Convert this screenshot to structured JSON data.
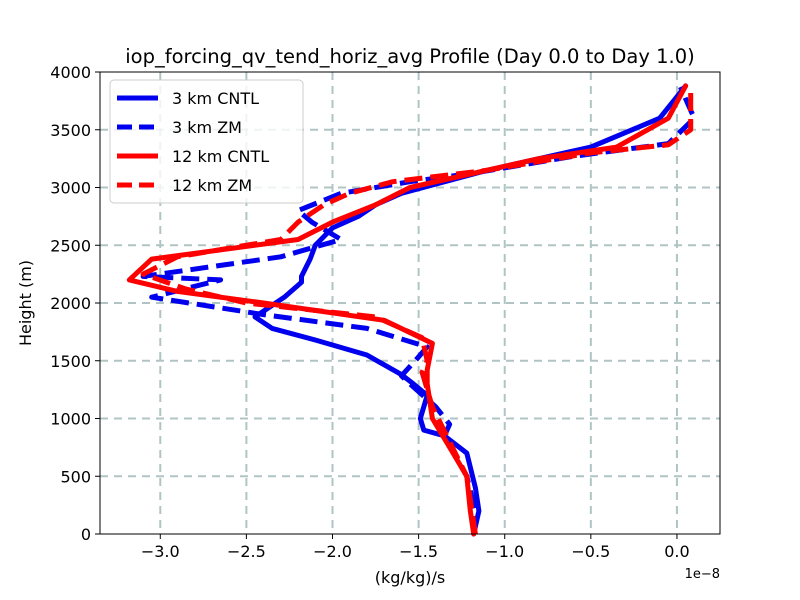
{
  "chart_data": {
    "type": "line",
    "title": "iop_forcing_qv_tend_horiz_avg Profile (Day 0.0 to Day 1.0)",
    "xlabel": "(kg/kg)/s",
    "ylabel": "Height (m)",
    "x_offset_label": "1e−8",
    "xlim": [
      -3.35,
      0.25
    ],
    "ylim": [
      0,
      4000
    ],
    "xticks": [
      -3.0,
      -2.5,
      -2.0,
      -1.5,
      -1.0,
      -0.5,
      0.0
    ],
    "xtick_labels": [
      "−3.0",
      "−2.5",
      "−2.0",
      "−1.5",
      "−1.0",
      "−0.5",
      "0.0"
    ],
    "yticks": [
      0,
      500,
      1000,
      1500,
      2000,
      2500,
      3000,
      3500,
      4000
    ],
    "ytick_labels": [
      "0",
      "500",
      "1000",
      "1500",
      "2000",
      "2500",
      "3000",
      "3500",
      "4000"
    ],
    "grid": true,
    "legend_position": "top-left",
    "series": [
      {
        "name": "3 km CNTL",
        "color": "#0000ee",
        "dashed": false,
        "points": [
          [
            -1.18,
            0
          ],
          [
            -1.15,
            200
          ],
          [
            -1.17,
            400
          ],
          [
            -1.22,
            700
          ],
          [
            -1.35,
            850
          ],
          [
            -1.47,
            900
          ],
          [
            -1.49,
            1000
          ],
          [
            -1.45,
            1200
          ],
          [
            -1.53,
            1300
          ],
          [
            -1.6,
            1380
          ],
          [
            -1.8,
            1550
          ],
          [
            -2.1,
            1680
          ],
          [
            -2.35,
            1780
          ],
          [
            -2.45,
            1880
          ],
          [
            -2.28,
            2050
          ],
          [
            -2.18,
            2180
          ],
          [
            -2.18,
            2230
          ],
          [
            -2.13,
            2380
          ],
          [
            -2.1,
            2500
          ],
          [
            -2.0,
            2650
          ],
          [
            -1.85,
            2750
          ],
          [
            -1.75,
            2850
          ],
          [
            -1.6,
            2950
          ],
          [
            -1.1,
            3150
          ],
          [
            -0.5,
            3350
          ],
          [
            -0.1,
            3600
          ],
          [
            0.05,
            3880
          ]
        ]
      },
      {
        "name": "3 km ZM",
        "color": "#0000ee",
        "dashed": true,
        "points": [
          [
            -1.18,
            0
          ],
          [
            -1.17,
            200
          ],
          [
            -1.22,
            500
          ],
          [
            -1.35,
            850
          ],
          [
            -1.32,
            950
          ],
          [
            -1.4,
            1100
          ],
          [
            -1.55,
            1300
          ],
          [
            -1.6,
            1370
          ],
          [
            -1.52,
            1500
          ],
          [
            -1.45,
            1620
          ],
          [
            -1.8,
            1780
          ],
          [
            -2.4,
            1900
          ],
          [
            -3.05,
            2050
          ],
          [
            -2.65,
            2200
          ],
          [
            -3.1,
            2230
          ],
          [
            -2.3,
            2400
          ],
          [
            -1.95,
            2550
          ],
          [
            -2.12,
            2700
          ],
          [
            -2.2,
            2800
          ],
          [
            -1.95,
            2950
          ],
          [
            -1.55,
            3050
          ],
          [
            -1.2,
            3120
          ],
          [
            -0.6,
            3270
          ],
          [
            -0.05,
            3380
          ],
          [
            0.1,
            3600
          ],
          [
            0.02,
            3870
          ]
        ]
      },
      {
        "name": "12 km CNTL",
        "color": "#ff0000",
        "dashed": false,
        "points": [
          [
            -1.18,
            0
          ],
          [
            -1.2,
            200
          ],
          [
            -1.22,
            500
          ],
          [
            -1.3,
            700
          ],
          [
            -1.42,
            1000
          ],
          [
            -1.45,
            1300
          ],
          [
            -1.45,
            1420
          ],
          [
            -1.42,
            1650
          ],
          [
            -1.7,
            1850
          ],
          [
            -2.4,
            2000
          ],
          [
            -2.9,
            2100
          ],
          [
            -3.18,
            2200
          ],
          [
            -3.05,
            2380
          ],
          [
            -2.2,
            2550
          ],
          [
            -2.0,
            2700
          ],
          [
            -1.75,
            2850
          ],
          [
            -1.55,
            3000
          ],
          [
            -0.8,
            3250
          ],
          [
            -0.35,
            3350
          ],
          [
            -0.05,
            3600
          ],
          [
            0.05,
            3880
          ]
        ]
      },
      {
        "name": "12 km ZM",
        "color": "#ff0000",
        "dashed": true,
        "points": [
          [
            -1.17,
            0
          ],
          [
            -1.2,
            300
          ],
          [
            -1.22,
            500
          ],
          [
            -1.32,
            800
          ],
          [
            -1.42,
            1100
          ],
          [
            -1.48,
            1400
          ],
          [
            -1.45,
            1500
          ],
          [
            -1.48,
            1700
          ],
          [
            -1.75,
            1880
          ],
          [
            -2.5,
            2000
          ],
          [
            -2.85,
            2120
          ],
          [
            -3.1,
            2250
          ],
          [
            -2.9,
            2400
          ],
          [
            -2.3,
            2550
          ],
          [
            -2.2,
            2700
          ],
          [
            -2.05,
            2850
          ],
          [
            -1.9,
            2950
          ],
          [
            -1.65,
            3050
          ],
          [
            -1.1,
            3150
          ],
          [
            -0.5,
            3300
          ],
          [
            -0.05,
            3370
          ],
          [
            0.08,
            3500
          ],
          [
            0.08,
            3850
          ]
        ]
      }
    ]
  }
}
